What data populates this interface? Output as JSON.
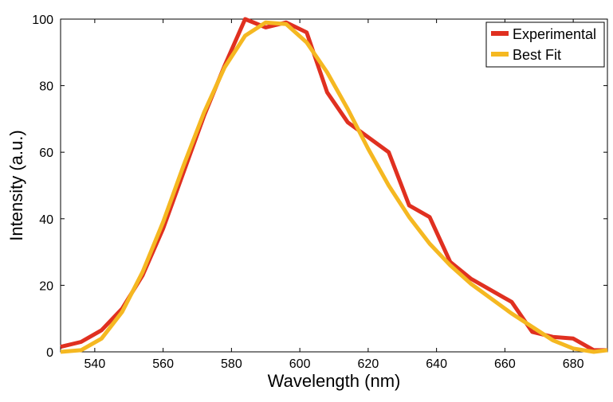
{
  "chart_data": {
    "type": "line",
    "title": "",
    "xlabel": "Wavelength (nm)",
    "ylabel": "Intensity (a.u.)",
    "xlim": [
      530,
      690
    ],
    "ylim": [
      0,
      100
    ],
    "xticks": [
      540,
      560,
      580,
      600,
      620,
      640,
      660,
      680
    ],
    "yticks": [
      0,
      20,
      40,
      60,
      80,
      100
    ],
    "grid": false,
    "legend_position": "top-right",
    "series": [
      {
        "name": "Experimental",
        "color": "#e03020",
        "x": [
          530,
          536,
          542,
          548,
          554,
          560,
          566,
          572,
          578,
          584,
          590,
          596,
          602,
          608,
          614,
          620,
          626,
          632,
          638,
          644,
          650,
          656,
          662,
          668,
          674,
          680,
          686,
          690
        ],
        "y": [
          1.5,
          3.0,
          6.5,
          13.0,
          23.0,
          37.0,
          54.0,
          71.0,
          86.0,
          100.0,
          97.5,
          99.0,
          96.0,
          78.0,
          69.0,
          64.5,
          60.0,
          44.0,
          40.5,
          27.0,
          22.0,
          18.5,
          15.0,
          6.0,
          4.5,
          4.0,
          0.5,
          0.5
        ]
      },
      {
        "name": "Best Fit",
        "color": "#f5b821",
        "x": [
          530,
          536,
          542,
          548,
          554,
          560,
          566,
          572,
          578,
          584,
          590,
          596,
          602,
          608,
          614,
          620,
          626,
          632,
          638,
          644,
          650,
          656,
          662,
          668,
          674,
          680,
          686,
          690
        ],
        "y": [
          0.0,
          0.5,
          4.0,
          12.0,
          24.0,
          39.0,
          56.0,
          72.0,
          85.5,
          95.0,
          99.0,
          98.5,
          93.0,
          84.0,
          73.0,
          61.0,
          50.0,
          40.5,
          32.5,
          26.0,
          20.5,
          16.0,
          11.5,
          7.5,
          3.5,
          1.0,
          0.0,
          0.5
        ]
      }
    ]
  }
}
